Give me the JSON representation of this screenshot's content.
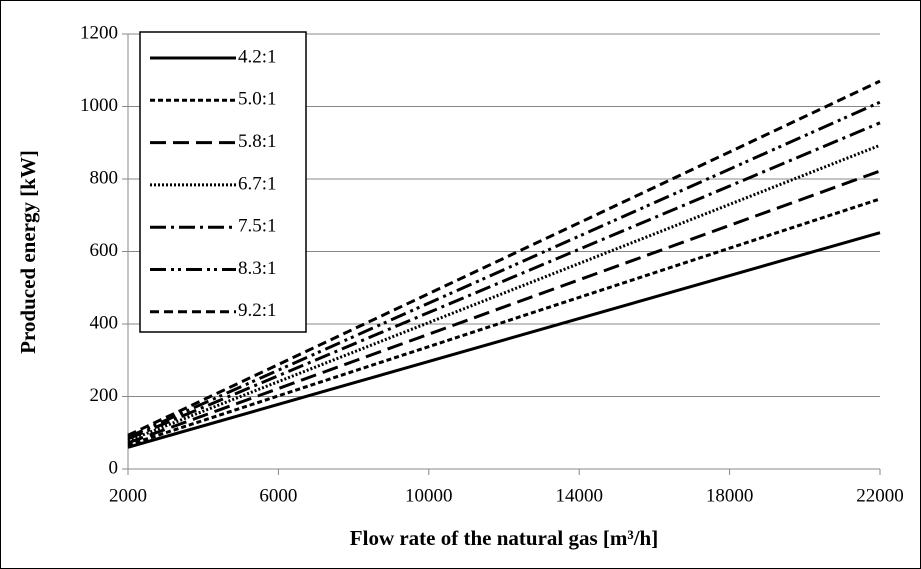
{
  "chart_data": {
    "type": "line",
    "xlabel": "Flow rate of the natural gas  [m³/h]",
    "ylabel": "Produced energy  [kW]",
    "x": [
      2000,
      22000
    ],
    "series": [
      {
        "name": "4.2:1",
        "color": "#000000",
        "dash": "none",
        "values": [
          60,
          652
        ]
      },
      {
        "name": "5.0:1",
        "color": "#000000",
        "dash": "5 3",
        "values": [
          66,
          745
        ]
      },
      {
        "name": "5.8:1",
        "color": "#000000",
        "dash": "16 7",
        "values": [
          72,
          822
        ]
      },
      {
        "name": "6.7:1",
        "color": "#000000",
        "dash": "2 2",
        "values": [
          78,
          893
        ]
      },
      {
        "name": "7.5:1",
        "color": "#000000",
        "dash": "16 5 3 5",
        "values": [
          83,
          955
        ]
      },
      {
        "name": "8.3:1",
        "color": "#000000",
        "dash": "16 5 3 4 3 5",
        "values": [
          88,
          1012
        ]
      },
      {
        "name": "9.2:1",
        "color": "#000000",
        "dash": "9 5",
        "values": [
          93,
          1070
        ]
      }
    ],
    "xlim": [
      2000,
      22000
    ],
    "xticks": [
      2000,
      6000,
      10000,
      14000,
      18000,
      22000
    ],
    "ylim": [
      0,
      1200
    ],
    "yticks": [
      0,
      200,
      400,
      600,
      800,
      1000,
      1200
    ],
    "grid": true,
    "legend": "upper left"
  }
}
